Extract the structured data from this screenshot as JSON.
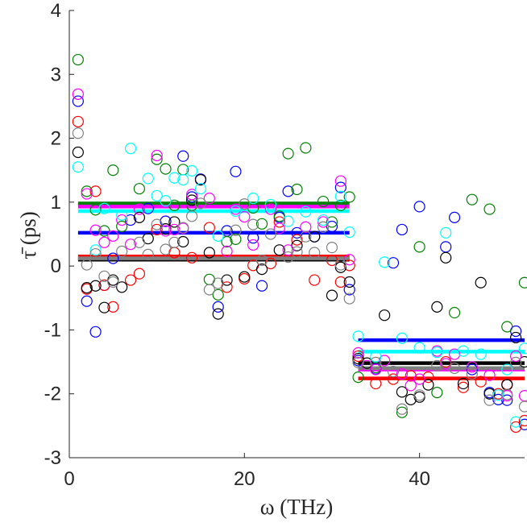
{
  "chart_data": {
    "type": "scatter",
    "title": "",
    "xlabel": "ω (THz)",
    "ylabel": "τ̄ (ps)",
    "xlim": [
      0,
      52
    ],
    "ylim": [
      -3,
      4
    ],
    "x_ticks": [
      "0",
      "20",
      "40"
    ],
    "x_tick_values": [
      0,
      20,
      40
    ],
    "y_ticks": [
      "-3",
      "-2",
      "-1",
      "0",
      "1",
      "2",
      "3",
      "4"
    ],
    "y_tick_values": [
      -3,
      -2,
      -1,
      0,
      1,
      2,
      3,
      4
    ],
    "grid": false,
    "legend": "none",
    "series": [
      {
        "name": "blue",
        "color": "#0000ff",
        "points": [
          [
            1,
            2.58
          ],
          [
            2,
            -0.55
          ],
          [
            3,
            -1.03
          ],
          [
            4,
            -0.3
          ],
          [
            5,
            0.12
          ],
          [
            7,
            0.72
          ],
          [
            9,
            0.9
          ],
          [
            11,
            0.7
          ],
          [
            13,
            1.72
          ],
          [
            14,
            1.08
          ],
          [
            15,
            1.36
          ],
          [
            17,
            -0.64
          ],
          [
            18,
            0.55
          ],
          [
            19,
            1.48
          ],
          [
            21,
            0.44
          ],
          [
            22,
            -0.31
          ],
          [
            24,
            0.76
          ],
          [
            25,
            1.17
          ],
          [
            26,
            0.52
          ],
          [
            28,
            0.46
          ],
          [
            30,
            0.62
          ],
          [
            31,
            1.23
          ],
          [
            32,
            -0.37
          ],
          [
            33,
            -1.48
          ],
          [
            35,
            -1.61
          ],
          [
            37,
            0.05
          ],
          [
            38,
            0.57
          ],
          [
            40,
            0.93
          ],
          [
            43,
            0.3
          ],
          [
            44,
            0.76
          ],
          [
            46,
            -1.62
          ],
          [
            48,
            -1.98
          ],
          [
            49,
            -2.09
          ],
          [
            50,
            -2.1
          ],
          [
            51,
            -1.02
          ],
          [
            52,
            -2.48
          ]
        ],
        "mean_segments": [
          [
            [
              1,
              32
            ],
            0.52
          ],
          [
            [
              33,
              52
            ],
            -1.16
          ]
        ]
      },
      {
        "name": "green",
        "color": "#008000",
        "points": [
          [
            1,
            3.23
          ],
          [
            2,
            1.17
          ],
          [
            3,
            0.88
          ],
          [
            4,
            0.55
          ],
          [
            5,
            1.5
          ],
          [
            6,
            0.62
          ],
          [
            8,
            1.21
          ],
          [
            10,
            1.67
          ],
          [
            11,
            1.52
          ],
          [
            12,
            0.95
          ],
          [
            13,
            1.51
          ],
          [
            14,
            0.95
          ],
          [
            16,
            -0.21
          ],
          [
            17,
            -0.45
          ],
          [
            18,
            0.38
          ],
          [
            19,
            0.42
          ],
          [
            21,
            0.91
          ],
          [
            22,
            0.66
          ],
          [
            24,
            0.78
          ],
          [
            25,
            1.76
          ],
          [
            26,
            1.2
          ],
          [
            27,
            1.85
          ],
          [
            29,
            1.01
          ],
          [
            30,
            0.69
          ],
          [
            31,
            0.95
          ],
          [
            32,
            1.08
          ],
          [
            33,
            -1.74
          ],
          [
            35,
            -1.59
          ],
          [
            38,
            -2.29
          ],
          [
            40,
            0.3
          ],
          [
            42,
            -1.98
          ],
          [
            44,
            -0.73
          ],
          [
            46,
            1.04
          ],
          [
            48,
            0.89
          ],
          [
            50,
            -0.95
          ],
          [
            52,
            -0.26
          ]
        ],
        "mean_segments": [
          [
            [
              1,
              32
            ],
            0.98
          ],
          [
            [
              33,
              52
            ],
            -1.6
          ]
        ]
      },
      {
        "name": "red",
        "color": "#ff0000",
        "points": [
          [
            1,
            2.26
          ],
          [
            2,
            -0.36
          ],
          [
            3,
            1.17
          ],
          [
            4,
            -0.3
          ],
          [
            5,
            -0.64
          ],
          [
            7,
            -0.22
          ],
          [
            8,
            -0.12
          ],
          [
            10,
            0.57
          ],
          [
            12,
            0.21
          ],
          [
            14,
            0.13
          ],
          [
            16,
            0.6
          ],
          [
            18,
            -0.33
          ],
          [
            20,
            -0.2
          ],
          [
            21,
            0.01
          ],
          [
            23,
            0.04
          ],
          [
            24,
            0.69
          ],
          [
            26,
            0.41
          ],
          [
            28,
            -0.22
          ],
          [
            30,
            0.09
          ],
          [
            31,
            -0.25
          ],
          [
            32,
            0.01
          ],
          [
            33,
            -1.41
          ],
          [
            35,
            -1.84
          ],
          [
            37,
            -1.77
          ],
          [
            39,
            -1.72
          ],
          [
            41,
            -1.74
          ],
          [
            43,
            -1.5
          ],
          [
            45,
            -1.9
          ],
          [
            47,
            -1.81
          ],
          [
            49,
            -2.0
          ],
          [
            50,
            -1.85
          ],
          [
            51,
            -2.52
          ],
          [
            52,
            -2.42
          ]
        ],
        "mean_segments": [
          [
            [
              1,
              32
            ],
            0.15
          ],
          [
            [
              33,
              52
            ],
            -1.76
          ]
        ]
      },
      {
        "name": "black",
        "color": "#000000",
        "points": [
          [
            1,
            1.78
          ],
          [
            2,
            -0.34
          ],
          [
            3,
            -0.31
          ],
          [
            4,
            -0.65
          ],
          [
            5,
            -0.22
          ],
          [
            6,
            -0.33
          ],
          [
            8,
            0.76
          ],
          [
            9,
            0.43
          ],
          [
            11,
            0.58
          ],
          [
            12,
            0.69
          ],
          [
            13,
            0.38
          ],
          [
            14,
            1.03
          ],
          [
            15,
            1.35
          ],
          [
            16,
            0.21
          ],
          [
            17,
            -0.75
          ],
          [
            18,
            -0.22
          ],
          [
            20,
            -0.17
          ],
          [
            22,
            -0.05
          ],
          [
            24,
            0.25
          ],
          [
            26,
            0.32
          ],
          [
            28,
            0.46
          ],
          [
            30,
            -0.46
          ],
          [
            31,
            -0.02
          ],
          [
            32,
            -0.25
          ],
          [
            33,
            -1.45
          ],
          [
            34,
            -1.52
          ],
          [
            36,
            -0.77
          ],
          [
            38,
            -1.97
          ],
          [
            39,
            -2.09
          ],
          [
            40,
            -2.05
          ],
          [
            41,
            -1.86
          ],
          [
            42,
            -0.64
          ],
          [
            43,
            0.13
          ],
          [
            45,
            -1.84
          ],
          [
            47,
            -0.26
          ],
          [
            48,
            -2.0
          ],
          [
            50,
            -1.86
          ],
          [
            51,
            -1.12
          ],
          [
            52,
            -1.5
          ]
        ],
        "mean_segments": [
          [
            [
              1,
              32
            ],
            0.1
          ],
          [
            [
              33,
              52
            ],
            -1.52
          ]
        ]
      },
      {
        "name": "magenta",
        "color": "#ff00ff",
        "points": [
          [
            1,
            2.69
          ],
          [
            2,
            1.13
          ],
          [
            3,
            0.56
          ],
          [
            4,
            0.37
          ],
          [
            5,
            0.47
          ],
          [
            6,
            0.72
          ],
          [
            7,
            0.34
          ],
          [
            8,
            0.89
          ],
          [
            10,
            1.73
          ],
          [
            11,
            0.55
          ],
          [
            12,
            0.57
          ],
          [
            13,
            0.59
          ],
          [
            14,
            1.12
          ],
          [
            16,
            1.06
          ],
          [
            18,
            0.23
          ],
          [
            19,
            0.89
          ],
          [
            20,
            0.77
          ],
          [
            21,
            0.33
          ],
          [
            23,
            0.89
          ],
          [
            24,
            0.59
          ],
          [
            25,
            0.25
          ],
          [
            27,
            0.61
          ],
          [
            29,
            0.69
          ],
          [
            31,
            1.33
          ],
          [
            32,
            0.1
          ],
          [
            33,
            -1.36
          ],
          [
            34,
            -1.56
          ],
          [
            35,
            -1.62
          ],
          [
            36,
            -1.48
          ],
          [
            38,
            -1.69
          ],
          [
            39,
            -1.87
          ],
          [
            40,
            -1.77
          ],
          [
            42,
            -1.33
          ],
          [
            43,
            -1.53
          ],
          [
            44,
            -1.38
          ],
          [
            46,
            -1.58
          ],
          [
            48,
            -1.71
          ],
          [
            50,
            -2.03
          ],
          [
            51,
            -1.41
          ],
          [
            52,
            -2.03
          ]
        ],
        "mean_segments": [
          [
            [
              1,
              32
            ],
            0.93
          ],
          [
            [
              33,
              52
            ],
            -1.62
          ]
        ]
      },
      {
        "name": "cyan",
        "color": "#00ffff",
        "points": [
          [
            1,
            1.55
          ],
          [
            3,
            0.25
          ],
          [
            4,
            0.9
          ],
          [
            6,
            0.8
          ],
          [
            7,
            1.84
          ],
          [
            9,
            1.37
          ],
          [
            10,
            1.1
          ],
          [
            11,
            1.02
          ],
          [
            12,
            1.38
          ],
          [
            13,
            1.35
          ],
          [
            14,
            1.49
          ],
          [
            15,
            1.21
          ],
          [
            17,
            0.47
          ],
          [
            19,
            0.86
          ],
          [
            21,
            1.06
          ],
          [
            23,
            0.96
          ],
          [
            25,
            0.7
          ],
          [
            27,
            0.85
          ],
          [
            29,
            0.72
          ],
          [
            31,
            1.09
          ],
          [
            32,
            0.53
          ],
          [
            33,
            -1.1
          ],
          [
            35,
            -1.42
          ],
          [
            36,
            0.06
          ],
          [
            38,
            -1.13
          ],
          [
            40,
            -1.28
          ],
          [
            42,
            -1.35
          ],
          [
            43,
            0.52
          ],
          [
            45,
            -1.33
          ],
          [
            47,
            -1.38
          ],
          [
            49,
            -2.02
          ],
          [
            50,
            -1.62
          ],
          [
            51,
            -2.44
          ],
          [
            52,
            -1.29
          ]
        ],
        "mean_segments": [
          [
            [
              1,
              32
            ],
            0.86
          ],
          [
            [
              33,
              52
            ],
            -1.34
          ]
        ]
      },
      {
        "name": "gray",
        "color": "#808080",
        "points": [
          [
            1,
            2.08
          ],
          [
            2,
            0.02
          ],
          [
            3,
            0.19
          ],
          [
            4,
            -0.16
          ],
          [
            5,
            -0.25
          ],
          [
            6,
            0.23
          ],
          [
            8,
            0.37
          ],
          [
            9,
            0.18
          ],
          [
            10,
            0.65
          ],
          [
            11,
            0.26
          ],
          [
            12,
            0.37
          ],
          [
            13,
            0.6
          ],
          [
            14,
            0.78
          ],
          [
            15,
            0.98
          ],
          [
            16,
            -0.37
          ],
          [
            17,
            -0.27
          ],
          [
            19,
            0.56
          ],
          [
            20,
            0.97
          ],
          [
            21,
            0.65
          ],
          [
            22,
            0.09
          ],
          [
            23,
            0.5
          ],
          [
            25,
            0.14
          ],
          [
            26,
            0.22
          ],
          [
            27,
            0.46
          ],
          [
            28,
            0.21
          ],
          [
            29,
            0.61
          ],
          [
            30,
            0.29
          ],
          [
            31,
            0.02
          ],
          [
            32,
            -0.51
          ],
          [
            33,
            -1.51
          ],
          [
            35,
            -1.51
          ],
          [
            37,
            -1.65
          ],
          [
            38,
            -2.24
          ],
          [
            40,
            -2.02
          ],
          [
            42,
            -1.56
          ],
          [
            44,
            -1.6
          ],
          [
            46,
            -1.69
          ],
          [
            48,
            -2.1
          ],
          [
            50,
            -2.01
          ],
          [
            51,
            -1.51
          ],
          [
            52,
            -2.2
          ]
        ],
        "mean_segments": [
          [
            [
              1,
              32
            ],
            0.12
          ],
          [
            [
              33,
              52
            ],
            -1.6
          ]
        ]
      }
    ]
  }
}
